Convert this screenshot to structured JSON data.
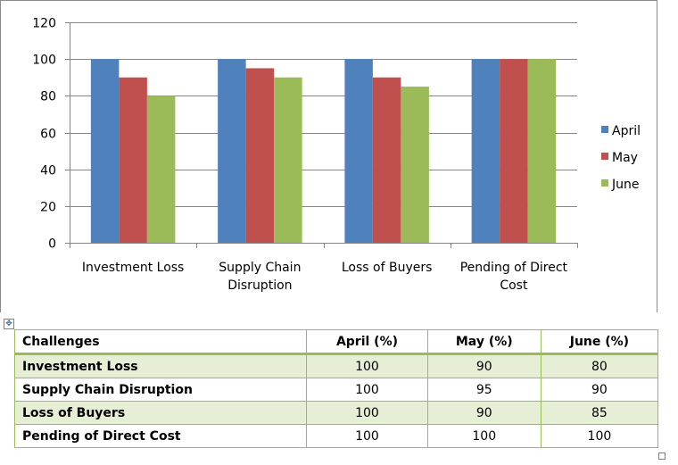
{
  "chart_data": {
    "type": "bar",
    "categories": [
      "Investment Loss",
      "Supply Chain Disruption",
      "Loss of Buyers",
      "Pending of Direct Cost"
    ],
    "category_label_lines": [
      [
        "Investment Loss"
      ],
      [
        "Supply Chain",
        "Disruption"
      ],
      [
        "Loss of Buyers"
      ],
      [
        "Pending of Direct",
        "Cost"
      ]
    ],
    "series": [
      {
        "name": "April",
        "color": "#4f81bd",
        "values": [
          100,
          100,
          100,
          100
        ]
      },
      {
        "name": "May",
        "color": "#c0504d",
        "values": [
          90,
          95,
          90,
          100
        ]
      },
      {
        "name": "June",
        "color": "#9bbb59",
        "values": [
          80,
          90,
          85,
          100
        ]
      }
    ],
    "ylim": [
      0,
      120
    ],
    "yticks": [
      0,
      20,
      40,
      60,
      80,
      100,
      120
    ],
    "grid": true,
    "legend": "right"
  },
  "table": {
    "headers": [
      "Challenges",
      "April (%)",
      "May (%)",
      "June (%)"
    ],
    "rows": [
      [
        "Investment Loss",
        "100",
        "90",
        "80"
      ],
      [
        "Supply Chain Disruption",
        "100",
        "95",
        "90"
      ],
      [
        "Loss of Buyers",
        "100",
        "90",
        "85"
      ],
      [
        "Pending of Direct Cost",
        "100",
        "100",
        "100"
      ]
    ]
  },
  "icons": {
    "move_handle": "move-icon",
    "resize_handle": "resize-handle-icon"
  }
}
